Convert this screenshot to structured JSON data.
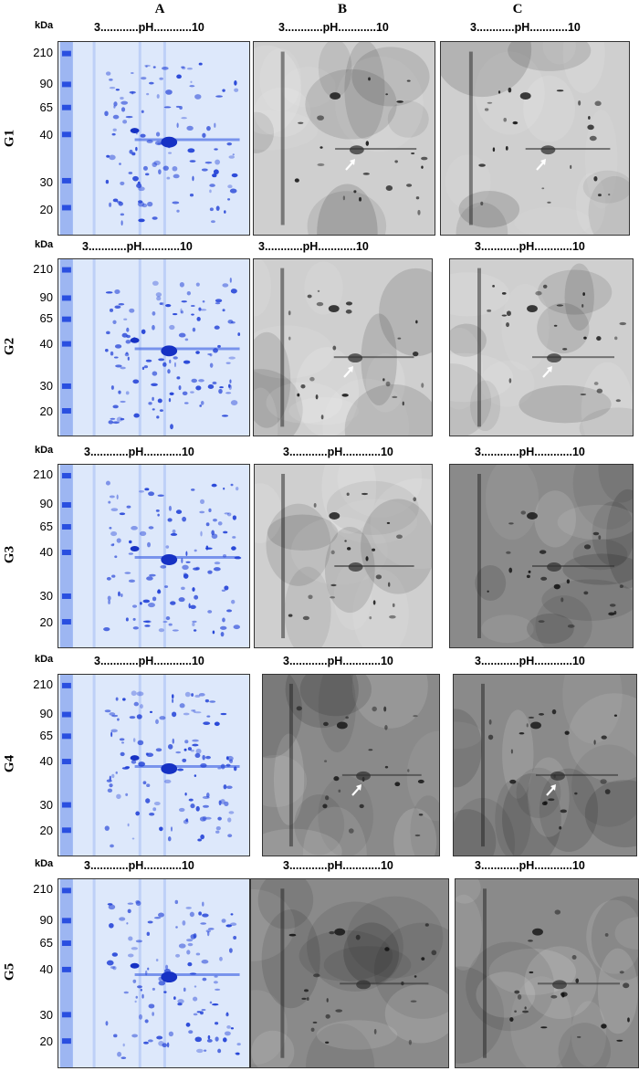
{
  "columns": [
    "A",
    "B",
    "C"
  ],
  "kda_label": "kDa",
  "ph_label": "3............pH............10",
  "mw_markers": [
    "210",
    "90",
    "65",
    "40",
    "30",
    "20"
  ],
  "groups": [
    "G1",
    "G2",
    "G3",
    "G4",
    "G5"
  ],
  "colors": {
    "coomassie_bg": "#dde8fb",
    "coomassie_spot": "#1f3fd6",
    "blot_light": "#d9d9d9",
    "blot_dark": "#111111"
  }
}
